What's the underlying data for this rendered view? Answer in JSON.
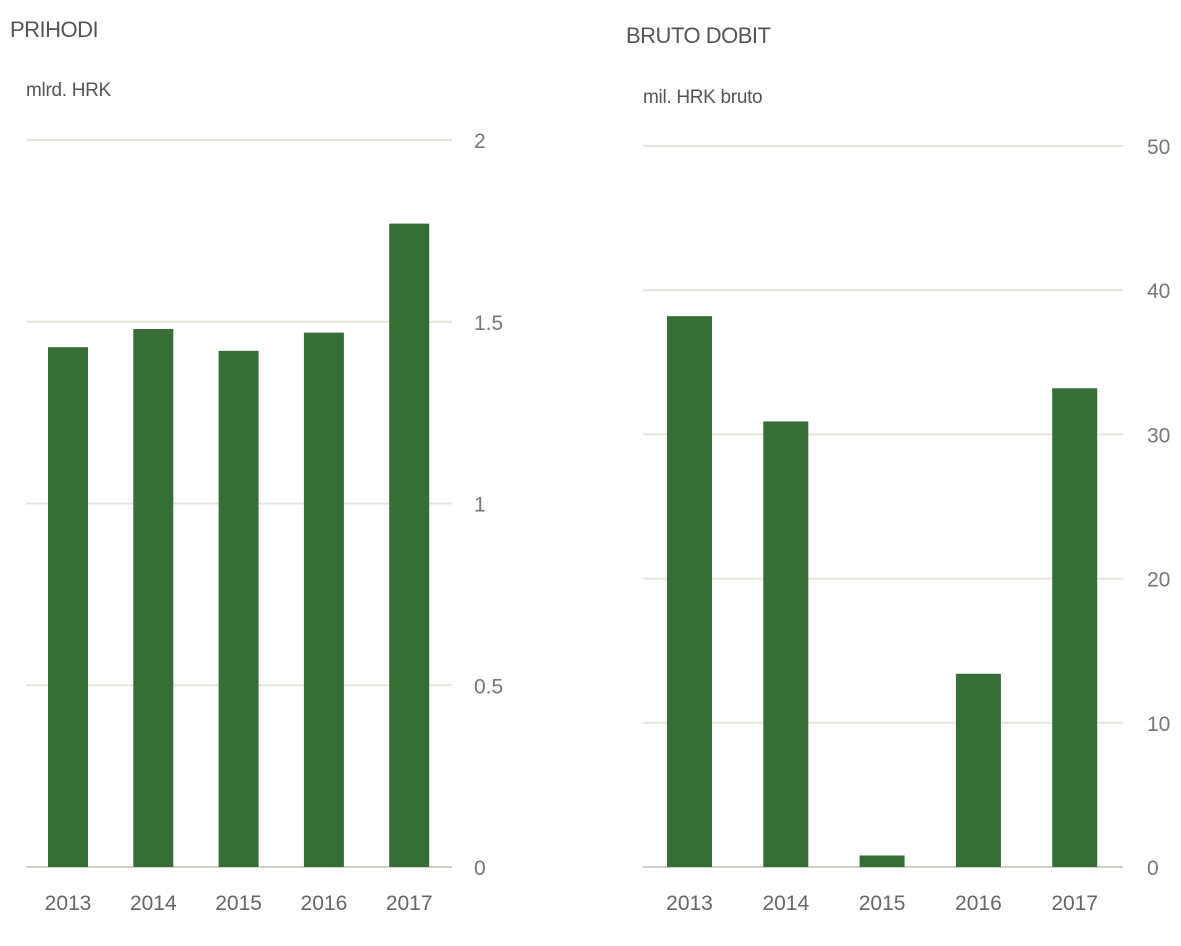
{
  "colors": {
    "bar": "#366f36",
    "grid": "#e4e4dc",
    "text": "#555555"
  },
  "chart_data": [
    {
      "type": "bar",
      "title": "PRIHODI",
      "ylabel": "mlrd. HRK",
      "categories": [
        "2013",
        "2014",
        "2015",
        "2016",
        "2017"
      ],
      "values": [
        1.43,
        1.48,
        1.42,
        1.47,
        1.77
      ],
      "ylim": [
        0,
        2
      ],
      "yticks": [
        0,
        0.5,
        1,
        1.5,
        2
      ],
      "ytick_labels": [
        "0",
        "0.5",
        "1",
        "1.5",
        "2"
      ],
      "grid": true,
      "yaxis_side": "right"
    },
    {
      "type": "bar",
      "title": "BRUTO DOBIT",
      "ylabel": "mil. HRK bruto",
      "categories": [
        "2013",
        "2014",
        "2015",
        "2016",
        "2017"
      ],
      "values": [
        38.2,
        30.9,
        0.8,
        13.4,
        33.2
      ],
      "ylim": [
        0,
        50
      ],
      "yticks": [
        0,
        10,
        20,
        30,
        40,
        50
      ],
      "ytick_labels": [
        "0",
        "10",
        "20",
        "30",
        "40",
        "50"
      ],
      "grid": true,
      "yaxis_side": "right"
    }
  ]
}
